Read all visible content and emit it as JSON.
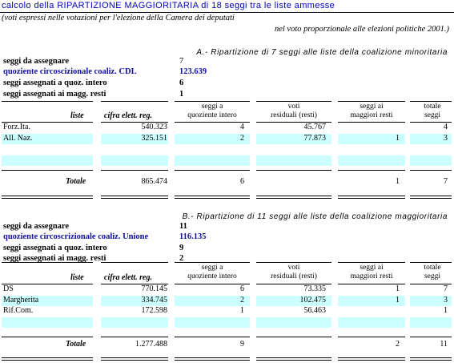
{
  "title": "calcolo della RIPARTIZIONE MAGGIORITARIA di 18 seggi tra le liste ammesse",
  "note1": "(voti espressi nelle votazioni per l'elezione della Camera dei deputati",
  "note2": "nel voto proporzionale alle elezioni politiche 2001.)",
  "sectionA": {
    "title": "A.- Ripartizione di 7 seggi alle liste della coalizione minoritaria",
    "info": [
      {
        "label": "seggi da assegnare",
        "value": "7"
      },
      {
        "label": "quoziente circoscizionale coaliz. CDL",
        "value": "123.639"
      },
      {
        "label": "seggi assegnati a quoz. intero",
        "value": "6"
      },
      {
        "label": "seggi assegnati ai magg. resti",
        "value": "1"
      }
    ],
    "headers": {
      "liste": "liste",
      "cifra": "cifra elett. reg.",
      "quoziente": [
        "seggi a",
        "quoziente intero"
      ],
      "voti": [
        "voti",
        "residuali (resti)"
      ],
      "resti": [
        "seggi ai",
        "maggiori resti"
      ],
      "totale": [
        "totale",
        "seggi"
      ]
    },
    "rows": [
      {
        "name": "Forz.Ita.",
        "cifra": "540.323",
        "quoz": "4",
        "voti": "45.767",
        "resti": "",
        "tot": "4"
      },
      {
        "name": "All. Naz.",
        "cifra": "325.151",
        "quoz": "2",
        "voti": "77.873",
        "resti": "1",
        "tot": "3"
      },
      {
        "name": "",
        "cifra": "",
        "quoz": "",
        "voti": "",
        "resti": "",
        "tot": ""
      },
      {
        "name": "",
        "cifra": "",
        "quoz": "",
        "voti": "",
        "resti": "",
        "tot": ""
      }
    ],
    "total": {
      "label": "Totale",
      "cifra": "865.474",
      "quoz": "6",
      "resti": "1",
      "tot": "7"
    }
  },
  "sectionB": {
    "title": "B.- Ripartizione di 11 seggi alle liste della coalizione maggioritaria",
    "info": [
      {
        "label": "seggi da assegnare",
        "value": "11"
      },
      {
        "label": "quoziente circoscrizionale coaliz. Unione",
        "value": "116.135"
      },
      {
        "label": "seggi assegnati a quoz. intero",
        "value": "9"
      },
      {
        "label": "seggi assegnati ai magg. resti",
        "value": "2"
      }
    ],
    "headers": {
      "liste": "liste",
      "cifra": "cifra elett. reg.",
      "quoziente": [
        "seggi a",
        "quoziente intero"
      ],
      "voti": [
        "voti",
        "residuali (resti)"
      ],
      "resti": [
        "seggi ai",
        "maggiori resti"
      ],
      "totale": [
        "totale",
        "seggi"
      ]
    },
    "rows": [
      {
        "name": "DS",
        "cifra": "770.145",
        "quoz": "6",
        "voti": "73.335",
        "resti": "1",
        "tot": "7"
      },
      {
        "name": "Margherita",
        "cifra": "334.745",
        "quoz": "2",
        "voti": "102.475",
        "resti": "1",
        "tot": "3"
      },
      {
        "name": "Rif.Com.",
        "cifra": "172.598",
        "quoz": "1",
        "voti": "56.463",
        "resti": "",
        "tot": "1"
      },
      {
        "name": "",
        "cifra": "",
        "quoz": "",
        "voti": "",
        "resti": "",
        "tot": ""
      }
    ],
    "total": {
      "label": "Totale",
      "cifra": "1.277.488",
      "quoz": "9",
      "resti": "2",
      "tot": "11"
    }
  }
}
